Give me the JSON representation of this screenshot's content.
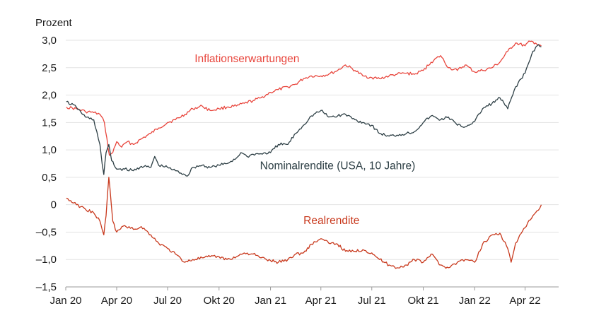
{
  "chart_data": {
    "type": "line",
    "ylabel": "Prozent",
    "ylim": [
      -1.5,
      3.0
    ],
    "xlim": [
      "2020-01-01",
      "2022-05-31"
    ],
    "yticks": [
      3.0,
      2.5,
      2.0,
      1.5,
      1.0,
      0.5,
      0,
      -0.5,
      -1.0,
      -1.5
    ],
    "ytick_labels": [
      "3,0",
      "2,5",
      "2,0",
      "1,5",
      "1,0",
      "0,5",
      "0",
      "–0,5",
      "–1,0",
      "–1,5"
    ],
    "xticks": [
      "2020-01-01",
      "2020-04-01",
      "2020-07-01",
      "2020-10-01",
      "2021-01-01",
      "2021-04-01",
      "2021-07-01",
      "2021-10-01",
      "2022-01-01",
      "2022-04-01"
    ],
    "xtick_labels": [
      "Jan 20",
      "Apr 20",
      "Jul 20",
      "Okt 20",
      "Jan 21",
      "Apr 21",
      "Jul 21",
      "Okt 21",
      "Jan 22",
      "Apr 22"
    ],
    "grid": true,
    "series": [
      {
        "name": "Inflationserwartungen",
        "color": "#e8453c",
        "x": [
          "2020-01-02",
          "2020-01-20",
          "2020-02-05",
          "2020-02-20",
          "2020-03-02",
          "2020-03-10",
          "2020-03-19",
          "2020-03-25",
          "2020-04-01",
          "2020-04-10",
          "2020-04-20",
          "2020-05-01",
          "2020-05-15",
          "2020-06-01",
          "2020-06-15",
          "2020-07-01",
          "2020-07-15",
          "2020-08-01",
          "2020-08-15",
          "2020-09-01",
          "2020-09-15",
          "2020-10-01",
          "2020-10-15",
          "2020-11-01",
          "2020-11-15",
          "2020-12-01",
          "2020-12-15",
          "2021-01-01",
          "2021-01-15",
          "2021-02-01",
          "2021-02-15",
          "2021-03-01",
          "2021-03-15",
          "2021-04-01",
          "2021-04-15",
          "2021-05-01",
          "2021-05-15",
          "2021-06-01",
          "2021-06-15",
          "2021-07-01",
          "2021-07-15",
          "2021-08-01",
          "2021-08-15",
          "2021-09-01",
          "2021-09-15",
          "2021-10-01",
          "2021-10-15",
          "2021-11-01",
          "2021-11-15",
          "2021-12-01",
          "2021-12-15",
          "2022-01-01",
          "2022-01-15",
          "2022-02-01",
          "2022-02-15",
          "2022-03-01",
          "2022-03-15",
          "2022-04-01",
          "2022-04-10",
          "2022-04-20",
          "2022-04-30"
        ],
        "values": [
          1.78,
          1.75,
          1.7,
          1.68,
          1.65,
          1.5,
          0.9,
          0.95,
          1.15,
          1.05,
          1.15,
          1.1,
          1.2,
          1.3,
          1.4,
          1.5,
          1.55,
          1.65,
          1.75,
          1.8,
          1.72,
          1.75,
          1.78,
          1.8,
          1.85,
          1.9,
          1.95,
          2.05,
          2.1,
          2.15,
          2.2,
          2.3,
          2.35,
          2.35,
          2.38,
          2.45,
          2.55,
          2.45,
          2.35,
          2.32,
          2.3,
          2.35,
          2.38,
          2.4,
          2.38,
          2.45,
          2.6,
          2.72,
          2.5,
          2.45,
          2.55,
          2.42,
          2.45,
          2.5,
          2.6,
          2.8,
          2.95,
          2.9,
          2.98,
          2.95,
          2.9
        ]
      },
      {
        "name": "Nominalrendite (USA, 10 Jahre)",
        "color": "#2c3e44",
        "x": [
          "2020-01-02",
          "2020-01-20",
          "2020-02-05",
          "2020-02-20",
          "2020-03-02",
          "2020-03-06",
          "2020-03-09",
          "2020-03-13",
          "2020-03-18",
          "2020-03-23",
          "2020-04-01",
          "2020-04-15",
          "2020-05-01",
          "2020-05-15",
          "2020-06-01",
          "2020-06-08",
          "2020-06-15",
          "2020-07-01",
          "2020-07-15",
          "2020-08-01",
          "2020-08-05",
          "2020-08-15",
          "2020-09-01",
          "2020-09-15",
          "2020-10-01",
          "2020-10-15",
          "2020-11-01",
          "2020-11-09",
          "2020-11-20",
          "2020-12-01",
          "2020-12-15",
          "2021-01-01",
          "2021-01-15",
          "2021-02-01",
          "2021-02-15",
          "2021-03-01",
          "2021-03-15",
          "2021-04-01",
          "2021-04-15",
          "2021-05-01",
          "2021-05-15",
          "2021-06-01",
          "2021-06-15",
          "2021-07-01",
          "2021-07-15",
          "2021-08-01",
          "2021-08-15",
          "2021-09-01",
          "2021-09-15",
          "2021-10-01",
          "2021-10-15",
          "2021-11-01",
          "2021-11-15",
          "2021-12-01",
          "2021-12-15",
          "2022-01-01",
          "2022-01-15",
          "2022-02-01",
          "2022-02-15",
          "2022-03-01",
          "2022-03-15",
          "2022-04-01",
          "2022-04-15",
          "2022-04-25",
          "2022-04-30"
        ],
        "values": [
          1.88,
          1.78,
          1.6,
          1.55,
          1.1,
          0.75,
          0.55,
          0.95,
          1.1,
          0.8,
          0.65,
          0.65,
          0.62,
          0.7,
          0.68,
          0.88,
          0.72,
          0.68,
          0.62,
          0.55,
          0.52,
          0.68,
          0.72,
          0.68,
          0.72,
          0.75,
          0.85,
          0.95,
          0.88,
          0.92,
          0.93,
          0.95,
          1.1,
          1.1,
          1.3,
          1.45,
          1.62,
          1.72,
          1.6,
          1.62,
          1.65,
          1.55,
          1.5,
          1.45,
          1.3,
          1.25,
          1.27,
          1.3,
          1.33,
          1.5,
          1.62,
          1.55,
          1.6,
          1.45,
          1.42,
          1.52,
          1.75,
          1.85,
          1.95,
          1.75,
          2.15,
          2.4,
          2.8,
          2.92,
          2.88
        ]
      },
      {
        "name": "Realrendite",
        "color": "#c8381c",
        "x": [
          "2020-01-02",
          "2020-01-20",
          "2020-02-05",
          "2020-02-20",
          "2020-03-02",
          "2020-03-06",
          "2020-03-09",
          "2020-03-13",
          "2020-03-18",
          "2020-03-20",
          "2020-03-25",
          "2020-04-01",
          "2020-04-15",
          "2020-05-01",
          "2020-05-15",
          "2020-06-01",
          "2020-06-15",
          "2020-07-01",
          "2020-07-15",
          "2020-08-01",
          "2020-08-15",
          "2020-09-01",
          "2020-09-15",
          "2020-10-01",
          "2020-10-15",
          "2020-11-01",
          "2020-11-15",
          "2020-12-01",
          "2020-12-15",
          "2021-01-01",
          "2021-01-15",
          "2021-02-01",
          "2021-02-15",
          "2021-03-01",
          "2021-03-15",
          "2021-04-01",
          "2021-04-15",
          "2021-05-01",
          "2021-05-15",
          "2021-06-01",
          "2021-06-15",
          "2021-07-01",
          "2021-07-15",
          "2021-08-01",
          "2021-08-15",
          "2021-09-01",
          "2021-09-15",
          "2021-10-01",
          "2021-10-15",
          "2021-11-01",
          "2021-11-15",
          "2021-12-01",
          "2021-12-15",
          "2022-01-01",
          "2022-01-15",
          "2022-02-01",
          "2022-02-15",
          "2022-03-01",
          "2022-03-07",
          "2022-03-15",
          "2022-04-01",
          "2022-04-15",
          "2022-04-25",
          "2022-04-30"
        ],
        "values": [
          0.12,
          0.0,
          -0.08,
          -0.15,
          -0.3,
          -0.45,
          -0.55,
          -0.2,
          0.5,
          0.3,
          -0.3,
          -0.5,
          -0.38,
          -0.45,
          -0.4,
          -0.55,
          -0.7,
          -0.8,
          -0.9,
          -1.05,
          -1.0,
          -0.97,
          -0.95,
          -0.95,
          -1.0,
          -0.95,
          -0.88,
          -0.9,
          -0.97,
          -1.02,
          -1.05,
          -1.0,
          -0.9,
          -0.88,
          -0.72,
          -0.62,
          -0.7,
          -0.72,
          -0.85,
          -0.85,
          -0.82,
          -0.88,
          -1.0,
          -1.1,
          -1.15,
          -1.1,
          -1.0,
          -1.05,
          -0.9,
          -1.1,
          -1.15,
          -1.05,
          -1.0,
          -1.05,
          -0.72,
          -0.55,
          -0.52,
          -0.8,
          -1.05,
          -0.7,
          -0.42,
          -0.2,
          -0.1,
          0.0
        ]
      }
    ],
    "annotations": [
      {
        "text": "Inflationserwartungen",
        "series": 0
      },
      {
        "text": "Nominalrendite (USA, 10 Jahre)",
        "series": 1
      },
      {
        "text": "Realrendite",
        "series": 2
      }
    ]
  }
}
